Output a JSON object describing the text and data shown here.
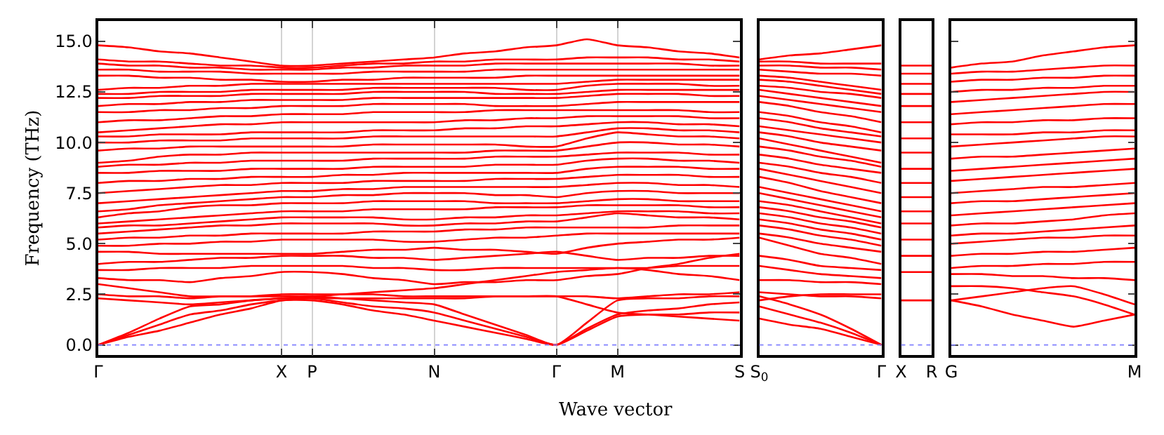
{
  "chart_data": [
    {
      "type": "line",
      "xlabel": "Wave vector",
      "ylabel": "Frequency (THz)",
      "categories": [
        "Γ",
        null,
        null,
        null,
        null,
        null,
        "X",
        "P",
        null,
        null,
        null,
        "N",
        null,
        null,
        null,
        "Γ",
        null,
        "M",
        null,
        null,
        null,
        "S"
      ],
      "ylim": [
        -0.5,
        16
      ],
      "yticks": [
        {
          "value": 0,
          "label": "0.0"
        },
        {
          "value": 2.5,
          "label": "2.5"
        },
        {
          "value": 5,
          "label": "5.0"
        },
        {
          "value": 7.5,
          "label": "7.5"
        },
        {
          "value": 10,
          "label": "10.0"
        },
        {
          "value": 12.5,
          "label": "12.5"
        },
        {
          "value": 15,
          "label": "15.0"
        }
      ],
      "grid": "x",
      "marker": "none",
      "line_style": "solid",
      "ref_lines": [
        {
          "axis": "y",
          "value": 0,
          "color": "#8080ff",
          "line_style": "dotted"
        }
      ],
      "series": [
        {
          "color": "#ff0000",
          "values": [
            0,
            0.4,
            0.7,
            1.1,
            1.5,
            1.8,
            2.2,
            2.2,
            2.0,
            1.7,
            1.5,
            1.2,
            0.9,
            0.6,
            0.3,
            0,
            0.7,
            1.4,
            1.5,
            1.5,
            1.6,
            1.6
          ]
        },
        {
          "color": "#ff0000",
          "values": [
            0,
            0.5,
            1.0,
            1.5,
            1.7,
            2.0,
            2.2,
            2.3,
            2.1,
            1.9,
            1.8,
            1.6,
            1.2,
            0.8,
            0.4,
            0,
            0.8,
            1.5,
            1.7,
            1.8,
            2.0,
            2.1
          ]
        },
        {
          "color": "#ff0000",
          "values": [
            0,
            0.6,
            1.3,
            1.9,
            2.0,
            2.2,
            2.3,
            2.4,
            2.3,
            2.2,
            2.1,
            2.0,
            1.5,
            1.0,
            0.5,
            0,
            1.1,
            2.2,
            2.3,
            2.3,
            2.4,
            2.4
          ]
        },
        {
          "color": "#ff0000",
          "values": [
            2.5,
            2.4,
            2.4,
            2.3,
            2.4,
            2.4,
            2.5,
            2.5,
            2.5,
            2.5,
            2.4,
            2.4,
            2.4,
            2.4,
            2.4,
            2.4,
            2.0,
            1.6,
            1.5,
            1.4,
            1.3,
            1.2
          ]
        },
        {
          "color": "#ff0000",
          "values": [
            2.3,
            2.2,
            2.1,
            2.0,
            2.1,
            2.2,
            2.3,
            2.3,
            2.3,
            2.3,
            2.3,
            2.3,
            2.3,
            2.4,
            2.4,
            2.4,
            2.4,
            2.3,
            2.4,
            2.5,
            2.5,
            2.6
          ]
        },
        {
          "color": "#ff0000",
          "values": [
            3.0,
            2.8,
            2.6,
            2.4,
            2.4,
            2.4,
            2.4,
            2.4,
            2.5,
            2.6,
            2.7,
            2.8,
            3.0,
            3.2,
            3.4,
            3.6,
            3.7,
            3.8,
            3.7,
            3.5,
            3.4,
            3.2
          ]
        },
        {
          "color": "#ff0000",
          "values": [
            3.3,
            3.2,
            3.2,
            3.1,
            3.3,
            3.4,
            3.6,
            3.6,
            3.5,
            3.3,
            3.2,
            3.0,
            3.1,
            3.1,
            3.2,
            3.2,
            3.4,
            3.5,
            3.8,
            4.0,
            4.3,
            4.5
          ]
        },
        {
          "color": "#ff0000",
          "values": [
            3.7,
            3.7,
            3.8,
            3.8,
            3.8,
            3.9,
            3.9,
            3.9,
            3.9,
            3.8,
            3.8,
            3.7,
            3.7,
            3.8,
            3.8,
            3.8,
            3.8,
            3.8,
            3.8,
            3.9,
            3.9,
            3.9
          ]
        },
        {
          "color": "#ff0000",
          "values": [
            4.0,
            4.1,
            4.1,
            4.2,
            4.3,
            4.3,
            4.4,
            4.4,
            4.4,
            4.3,
            4.3,
            4.2,
            4.3,
            4.4,
            4.5,
            4.6,
            4.4,
            4.2,
            4.3,
            4.3,
            4.4,
            4.4
          ]
        },
        {
          "color": "#ff0000",
          "values": [
            4.6,
            4.6,
            4.5,
            4.5,
            4.5,
            4.5,
            4.5,
            4.5,
            4.6,
            4.7,
            4.7,
            4.8,
            4.7,
            4.7,
            4.6,
            4.5,
            4.8,
            5.0,
            5.1,
            5.2,
            5.2,
            5.3
          ]
        },
        {
          "color": "#ff0000",
          "values": [
            4.9,
            4.9,
            5.0,
            5.0,
            5.1,
            5.1,
            5.2,
            5.2,
            5.2,
            5.2,
            5.1,
            5.1,
            5.2,
            5.3,
            5.3,
            5.4,
            5.5,
            5.5,
            5.5,
            5.5,
            5.5,
            5.5
          ]
        },
        {
          "color": "#ff0000",
          "values": [
            5.2,
            5.3,
            5.3,
            5.4,
            5.4,
            5.5,
            5.5,
            5.5,
            5.5,
            5.6,
            5.6,
            5.6,
            5.7,
            5.7,
            5.8,
            5.8,
            5.8,
            5.8,
            5.8,
            5.9,
            5.9,
            5.9
          ]
        },
        {
          "color": "#ff0000",
          "values": [
            5.5,
            5.6,
            5.7,
            5.8,
            5.9,
            5.9,
            6.0,
            6.0,
            6.0,
            6.0,
            5.9,
            5.9,
            6.0,
            6.0,
            6.1,
            6.1,
            6.3,
            6.5,
            6.4,
            6.3,
            6.3,
            6.2
          ]
        },
        {
          "color": "#ff0000",
          "values": [
            5.8,
            5.9,
            5.9,
            6.0,
            6.1,
            6.2,
            6.3,
            6.3,
            6.3,
            6.3,
            6.2,
            6.2,
            6.3,
            6.3,
            6.4,
            6.4,
            6.5,
            6.6,
            6.6,
            6.6,
            6.5,
            6.5
          ]
        },
        {
          "color": "#ff0000",
          "values": [
            6.0,
            6.1,
            6.2,
            6.3,
            6.4,
            6.5,
            6.6,
            6.6,
            6.6,
            6.7,
            6.7,
            6.7,
            6.7,
            6.8,
            6.8,
            6.8,
            6.9,
            6.9,
            6.9,
            6.9,
            6.8,
            6.8
          ]
        },
        {
          "color": "#ff0000",
          "values": [
            6.3,
            6.5,
            6.6,
            6.8,
            6.9,
            6.9,
            7.0,
            7.0,
            7.0,
            7.1,
            7.1,
            7.1,
            7.1,
            7.0,
            7.0,
            7.0,
            7.1,
            7.2,
            7.2,
            7.1,
            7.1,
            7.1
          ]
        },
        {
          "color": "#ff0000",
          "values": [
            6.6,
            6.7,
            6.9,
            7.0,
            7.1,
            7.2,
            7.3,
            7.3,
            7.4,
            7.4,
            7.5,
            7.5,
            7.5,
            7.4,
            7.4,
            7.3,
            7.5,
            7.6,
            7.6,
            7.5,
            7.5,
            7.5
          ]
        },
        {
          "color": "#ff0000",
          "values": [
            7.0,
            7.1,
            7.2,
            7.3,
            7.4,
            7.5,
            7.6,
            7.6,
            7.7,
            7.7,
            7.8,
            7.8,
            7.8,
            7.8,
            7.8,
            7.8,
            7.9,
            8.0,
            8.0,
            7.9,
            7.9,
            7.8
          ]
        },
        {
          "color": "#ff0000",
          "values": [
            7.5,
            7.6,
            7.7,
            7.8,
            7.9,
            7.9,
            8.0,
            8.0,
            8.0,
            8.1,
            8.1,
            8.1,
            8.1,
            8.2,
            8.2,
            8.2,
            8.3,
            8.4,
            8.4,
            8.4,
            8.3,
            8.3
          ]
        },
        {
          "color": "#ff0000",
          "values": [
            8.0,
            8.1,
            8.1,
            8.2,
            8.2,
            8.3,
            8.3,
            8.3,
            8.4,
            8.4,
            8.5,
            8.5,
            8.5,
            8.5,
            8.5,
            8.5,
            8.7,
            8.8,
            8.8,
            8.8,
            8.7,
            8.7
          ]
        },
        {
          "color": "#ff0000",
          "values": [
            8.5,
            8.5,
            8.6,
            8.6,
            8.6,
            8.7,
            8.7,
            8.7,
            8.7,
            8.8,
            8.8,
            8.8,
            8.8,
            8.9,
            8.9,
            8.9,
            9.1,
            9.2,
            9.2,
            9.1,
            9.1,
            9.0
          ]
        },
        {
          "color": "#ff0000",
          "values": [
            8.8,
            8.9,
            8.9,
            9.0,
            9.0,
            9.1,
            9.1,
            9.1,
            9.1,
            9.2,
            9.2,
            9.2,
            9.2,
            9.3,
            9.3,
            9.3,
            9.4,
            9.5,
            9.5,
            9.5,
            9.4,
            9.4
          ]
        },
        {
          "color": "#ff0000",
          "values": [
            9.0,
            9.1,
            9.3,
            9.4,
            9.4,
            9.5,
            9.5,
            9.5,
            9.5,
            9.5,
            9.5,
            9.5,
            9.5,
            9.6,
            9.6,
            9.6,
            9.8,
            10.0,
            10.0,
            9.9,
            9.9,
            9.8
          ]
        },
        {
          "color": "#ff0000",
          "values": [
            9.6,
            9.7,
            9.7,
            9.8,
            9.8,
            9.8,
            9.8,
            9.8,
            9.8,
            9.9,
            9.9,
            9.9,
            9.9,
            9.9,
            9.8,
            9.8,
            10.2,
            10.5,
            10.4,
            10.3,
            10.3,
            10.2
          ]
        },
        {
          "color": "#ff0000",
          "values": [
            10.0,
            10.0,
            10.1,
            10.1,
            10.1,
            10.2,
            10.2,
            10.2,
            10.2,
            10.3,
            10.3,
            10.3,
            10.3,
            10.3,
            10.3,
            10.3,
            10.5,
            10.7,
            10.7,
            10.6,
            10.6,
            10.5
          ]
        },
        {
          "color": "#ff0000",
          "values": [
            10.3,
            10.3,
            10.4,
            10.4,
            10.4,
            10.5,
            10.5,
            10.5,
            10.5,
            10.6,
            10.6,
            10.6,
            10.7,
            10.7,
            10.8,
            10.8,
            10.9,
            11.0,
            11.0,
            10.9,
            10.9,
            10.8
          ]
        },
        {
          "color": "#ff0000",
          "values": [
            10.5,
            10.6,
            10.7,
            10.8,
            10.9,
            10.9,
            11.0,
            11.0,
            11.0,
            11.0,
            11.0,
            11.0,
            11.1,
            11.1,
            11.2,
            11.2,
            11.3,
            11.3,
            11.3,
            11.3,
            11.2,
            11.2
          ]
        },
        {
          "color": "#ff0000",
          "values": [
            11.0,
            11.1,
            11.1,
            11.2,
            11.3,
            11.3,
            11.4,
            11.4,
            11.4,
            11.5,
            11.5,
            11.5,
            11.5,
            11.6,
            11.6,
            11.6,
            11.6,
            11.6,
            11.6,
            11.6,
            11.5,
            11.5
          ]
        },
        {
          "color": "#ff0000",
          "values": [
            11.5,
            11.5,
            11.6,
            11.6,
            11.7,
            11.7,
            11.8,
            11.8,
            11.8,
            11.9,
            11.9,
            11.9,
            11.9,
            11.8,
            11.8,
            11.8,
            11.9,
            12.0,
            12.0,
            12.0,
            12.0,
            12.0
          ]
        },
        {
          "color": "#ff0000",
          "values": [
            11.8,
            11.9,
            11.9,
            12.0,
            12.0,
            12.1,
            12.1,
            12.1,
            12.1,
            12.2,
            12.2,
            12.2,
            12.2,
            12.2,
            12.2,
            12.2,
            12.3,
            12.4,
            12.4,
            12.4,
            12.3,
            12.3
          ]
        },
        {
          "color": "#ff0000",
          "values": [
            12.2,
            12.2,
            12.3,
            12.3,
            12.3,
            12.4,
            12.4,
            12.4,
            12.4,
            12.5,
            12.5,
            12.5,
            12.5,
            12.4,
            12.4,
            12.4,
            12.5,
            12.6,
            12.6,
            12.6,
            12.6,
            12.6
          ]
        },
        {
          "color": "#ff0000",
          "values": [
            12.4,
            12.4,
            12.5,
            12.5,
            12.5,
            12.6,
            12.6,
            12.6,
            12.6,
            12.7,
            12.7,
            12.7,
            12.7,
            12.7,
            12.6,
            12.6,
            12.8,
            12.9,
            12.9,
            12.9,
            12.8,
            12.8
          ]
        },
        {
          "color": "#ff0000",
          "values": [
            12.6,
            12.7,
            12.7,
            12.8,
            12.8,
            12.9,
            12.9,
            12.9,
            12.9,
            12.9,
            12.9,
            12.9,
            12.9,
            12.9,
            12.9,
            12.9,
            13.0,
            13.1,
            13.1,
            13.1,
            13.1,
            13.1
          ]
        },
        {
          "color": "#ff0000",
          "values": [
            13.3,
            13.3,
            13.2,
            13.2,
            13.1,
            13.1,
            13.0,
            13.0,
            13.1,
            13.1,
            13.2,
            13.2,
            13.2,
            13.2,
            13.3,
            13.3,
            13.3,
            13.3,
            13.3,
            13.3,
            13.3,
            13.3
          ]
        },
        {
          "color": "#ff0000",
          "values": [
            13.6,
            13.6,
            13.5,
            13.5,
            13.5,
            13.4,
            13.4,
            13.4,
            13.4,
            13.5,
            13.5,
            13.5,
            13.5,
            13.6,
            13.6,
            13.6,
            13.6,
            13.6,
            13.6,
            13.6,
            13.6,
            13.6
          ]
        },
        {
          "color": "#ff0000",
          "values": [
            13.9,
            13.8,
            13.8,
            13.7,
            13.7,
            13.6,
            13.6,
            13.6,
            13.7,
            13.7,
            13.8,
            13.8,
            13.8,
            13.9,
            13.9,
            13.9,
            13.9,
            13.9,
            13.9,
            13.9,
            13.8,
            13.8
          ]
        },
        {
          "color": "#ff0000",
          "values": [
            14.1,
            14.0,
            14.0,
            13.9,
            13.8,
            13.8,
            13.7,
            13.7,
            13.8,
            13.9,
            13.9,
            14.0,
            14.0,
            14.1,
            14.1,
            14.1,
            14.2,
            14.2,
            14.2,
            14.1,
            14.1,
            14.0
          ]
        },
        {
          "color": "#ff0000",
          "values": [
            14.8,
            14.7,
            14.5,
            14.4,
            14.2,
            14.0,
            13.8,
            13.8,
            13.9,
            14.0,
            14.1,
            14.2,
            14.4,
            14.5,
            14.7,
            14.8,
            15.1,
            14.8,
            14.7,
            14.5,
            14.4,
            14.2
          ]
        }
      ]
    },
    {
      "type": "line",
      "categories": [
        "S$_{0}$",
        null,
        null,
        null,
        "Γ"
      ],
      "ylim": [
        -0.5,
        16
      ],
      "tick_labels": "x",
      "marker": "none",
      "line_style": "solid",
      "ref_lines": [
        {
          "axis": "y",
          "value": 0,
          "color": "#8080ff",
          "line_style": "dotted"
        }
      ],
      "series": [
        {
          "color": "#ff0000",
          "values": [
            1.3,
            1.0,
            0.8,
            0.4,
            0
          ]
        },
        {
          "color": "#ff0000",
          "values": [
            1.9,
            1.5,
            1.1,
            0.6,
            0
          ]
        },
        {
          "color": "#ff0000",
          "values": [
            2.4,
            2.0,
            1.5,
            0.8,
            0
          ]
        },
        {
          "color": "#ff0000",
          "values": [
            2.2,
            2.4,
            2.5,
            2.5,
            2.5
          ]
        },
        {
          "color": "#ff0000",
          "values": [
            2.6,
            2.5,
            2.4,
            2.4,
            2.3
          ]
        },
        {
          "color": "#ff0000",
          "values": [
            3.2,
            3.2,
            3.1,
            3.1,
            3.0
          ]
        },
        {
          "color": "#ff0000",
          "values": [
            3.9,
            3.7,
            3.5,
            3.4,
            3.3
          ]
        },
        {
          "color": "#ff0000",
          "values": [
            4.4,
            4.2,
            3.9,
            3.8,
            3.7
          ]
        },
        {
          "color": "#ff0000",
          "values": [
            5.3,
            4.9,
            4.5,
            4.3,
            4.0
          ]
        },
        {
          "color": "#ff0000",
          "values": [
            5.5,
            5.3,
            5.0,
            4.8,
            4.6
          ]
        },
        {
          "color": "#ff0000",
          "values": [
            5.9,
            5.7,
            5.4,
            5.2,
            4.9
          ]
        },
        {
          "color": "#ff0000",
          "values": [
            6.2,
            6.0,
            5.7,
            5.5,
            5.2
          ]
        },
        {
          "color": "#ff0000",
          "values": [
            6.5,
            6.3,
            6.0,
            5.8,
            5.5
          ]
        },
        {
          "color": "#ff0000",
          "values": [
            6.8,
            6.6,
            6.3,
            6.1,
            5.8
          ]
        },
        {
          "color": "#ff0000",
          "values": [
            7.1,
            6.9,
            6.6,
            6.3,
            6.0
          ]
        },
        {
          "color": "#ff0000",
          "values": [
            7.5,
            7.2,
            6.9,
            6.6,
            6.3
          ]
        },
        {
          "color": "#ff0000",
          "values": [
            7.8,
            7.5,
            7.2,
            6.9,
            6.6
          ]
        },
        {
          "color": "#ff0000",
          "values": [
            8.3,
            8.0,
            7.6,
            7.3,
            7.0
          ]
        },
        {
          "color": "#ff0000",
          "values": [
            8.7,
            8.4,
            8.1,
            7.8,
            7.5
          ]
        },
        {
          "color": "#ff0000",
          "values": [
            9.0,
            8.8,
            8.5,
            8.3,
            8.0
          ]
        },
        {
          "color": "#ff0000",
          "values": [
            9.4,
            9.2,
            8.9,
            8.7,
            8.5
          ]
        },
        {
          "color": "#ff0000",
          "values": [
            9.8,
            9.6,
            9.3,
            9.1,
            8.8
          ]
        },
        {
          "color": "#ff0000",
          "values": [
            10.2,
            9.9,
            9.6,
            9.3,
            9.0
          ]
        },
        {
          "color": "#ff0000",
          "values": [
            10.5,
            10.3,
            10.0,
            9.8,
            9.6
          ]
        },
        {
          "color": "#ff0000",
          "values": [
            10.8,
            10.6,
            10.4,
            10.2,
            10.0
          ]
        },
        {
          "color": "#ff0000",
          "values": [
            11.2,
            11.0,
            10.7,
            10.5,
            10.3
          ]
        },
        {
          "color": "#ff0000",
          "values": [
            11.5,
            11.3,
            11.0,
            10.8,
            10.5
          ]
        },
        {
          "color": "#ff0000",
          "values": [
            12.0,
            11.8,
            11.5,
            11.3,
            11.0
          ]
        },
        {
          "color": "#ff0000",
          "values": [
            12.3,
            12.1,
            11.9,
            11.7,
            11.5
          ]
        },
        {
          "color": "#ff0000",
          "values": [
            12.6,
            12.4,
            12.2,
            12.0,
            11.8
          ]
        },
        {
          "color": "#ff0000",
          "values": [
            12.8,
            12.7,
            12.5,
            12.4,
            12.2
          ]
        },
        {
          "color": "#ff0000",
          "values": [
            13.1,
            13.0,
            12.8,
            12.6,
            12.4
          ]
        },
        {
          "color": "#ff0000",
          "values": [
            13.3,
            13.2,
            13.0,
            12.8,
            12.6
          ]
        },
        {
          "color": "#ff0000",
          "values": [
            13.6,
            13.5,
            13.4,
            13.4,
            13.3
          ]
        },
        {
          "color": "#ff0000",
          "values": [
            13.8,
            13.8,
            13.7,
            13.7,
            13.6
          ]
        },
        {
          "color": "#ff0000",
          "values": [
            14.0,
            14.0,
            13.9,
            13.9,
            13.9
          ]
        },
        {
          "color": "#ff0000",
          "values": [
            14.1,
            14.3,
            14.4,
            14.6,
            14.8
          ]
        }
      ]
    },
    {
      "type": "line",
      "categories": [
        "X",
        "R"
      ],
      "ylim": [
        -0.5,
        16
      ],
      "tick_labels": "x",
      "marker": "none",
      "line_style": "solid",
      "ref_lines": [
        {
          "axis": "y",
          "value": 0,
          "color": "#8080ff",
          "line_style": "dotted"
        }
      ],
      "series": [
        {
          "color": "#ff0000",
          "values": [
            2.2,
            2.2
          ]
        },
        {
          "color": "#ff0000",
          "values": [
            3.6,
            3.6
          ]
        },
        {
          "color": "#ff0000",
          "values": [
            4.4,
            4.4
          ]
        },
        {
          "color": "#ff0000",
          "values": [
            5.2,
            5.2
          ]
        },
        {
          "color": "#ff0000",
          "values": [
            6.0,
            6.0
          ]
        },
        {
          "color": "#ff0000",
          "values": [
            6.6,
            6.6
          ]
        },
        {
          "color": "#ff0000",
          "values": [
            7.3,
            7.3
          ]
        },
        {
          "color": "#ff0000",
          "values": [
            8.0,
            8.0
          ]
        },
        {
          "color": "#ff0000",
          "values": [
            8.7,
            8.7
          ]
        },
        {
          "color": "#ff0000",
          "values": [
            9.5,
            9.5
          ]
        },
        {
          "color": "#ff0000",
          "values": [
            10.2,
            10.2
          ]
        },
        {
          "color": "#ff0000",
          "values": [
            11.0,
            11.0
          ]
        },
        {
          "color": "#ff0000",
          "values": [
            11.8,
            11.8
          ]
        },
        {
          "color": "#ff0000",
          "values": [
            12.4,
            12.4
          ]
        },
        {
          "color": "#ff0000",
          "values": [
            12.9,
            12.9
          ]
        },
        {
          "color": "#ff0000",
          "values": [
            13.4,
            13.4
          ]
        },
        {
          "color": "#ff0000",
          "values": [
            13.8,
            13.8
          ]
        }
      ]
    },
    {
      "type": "line",
      "categories": [
        "G",
        null,
        null,
        null,
        null,
        null,
        "M"
      ],
      "ylim": [
        -0.5,
        16
      ],
      "tick_labels": "x",
      "yticks": [
        {
          "value": 0,
          "label": null
        },
        {
          "value": 2.5,
          "label": null
        },
        {
          "value": 5,
          "label": null
        },
        {
          "value": 7.5,
          "label": null
        },
        {
          "value": 10,
          "label": null
        },
        {
          "value": 12.5,
          "label": null
        },
        {
          "value": 15,
          "label": null
        }
      ],
      "marker": "none",
      "line_style": "solid",
      "ref_lines": [
        {
          "axis": "y",
          "value": 0,
          "color": "#8080ff",
          "line_style": "dotted"
        }
      ],
      "series": [
        {
          "color": "#ff0000",
          "values": [
            2.2,
            1.9,
            1.5,
            1.2,
            0.9,
            1.2,
            1.5
          ]
        },
        {
          "color": "#ff0000",
          "values": [
            2.2,
            2.4,
            2.6,
            2.8,
            2.9,
            2.5,
            2.0
          ]
        },
        {
          "color": "#ff0000",
          "values": [
            2.9,
            2.9,
            2.8,
            2.6,
            2.4,
            2.0,
            1.5
          ]
        },
        {
          "color": "#ff0000",
          "values": [
            3.5,
            3.5,
            3.4,
            3.4,
            3.3,
            3.3,
            3.2
          ]
        },
        {
          "color": "#ff0000",
          "values": [
            3.8,
            3.9,
            3.9,
            4.0,
            4.0,
            4.1,
            4.1
          ]
        },
        {
          "color": "#ff0000",
          "values": [
            4.4,
            4.5,
            4.5,
            4.6,
            4.6,
            4.7,
            4.8
          ]
        },
        {
          "color": "#ff0000",
          "values": [
            5.0,
            5.1,
            5.2,
            5.3,
            5.3,
            5.4,
            5.4
          ]
        },
        {
          "color": "#ff0000",
          "values": [
            5.4,
            5.5,
            5.5,
            5.6,
            5.7,
            5.8,
            5.9
          ]
        },
        {
          "color": "#ff0000",
          "values": [
            5.9,
            6.0,
            6.0,
            6.1,
            6.2,
            6.4,
            6.5
          ]
        },
        {
          "color": "#ff0000",
          "values": [
            6.4,
            6.5,
            6.6,
            6.7,
            6.8,
            6.9,
            7.0
          ]
        },
        {
          "color": "#ff0000",
          "values": [
            7.0,
            7.1,
            7.1,
            7.2,
            7.3,
            7.4,
            7.5
          ]
        },
        {
          "color": "#ff0000",
          "values": [
            7.5,
            7.6,
            7.7,
            7.8,
            7.8,
            7.9,
            8.0
          ]
        },
        {
          "color": "#ff0000",
          "values": [
            8.1,
            8.2,
            8.3,
            8.4,
            8.5,
            8.6,
            8.7
          ]
        },
        {
          "color": "#ff0000",
          "values": [
            8.6,
            8.7,
            8.8,
            8.9,
            9.0,
            9.1,
            9.2
          ]
        },
        {
          "color": "#ff0000",
          "values": [
            9.2,
            9.3,
            9.3,
            9.4,
            9.5,
            9.6,
            9.7
          ]
        },
        {
          "color": "#ff0000",
          "values": [
            9.8,
            9.9,
            10.0,
            10.1,
            10.2,
            10.3,
            10.3
          ]
        },
        {
          "color": "#ff0000",
          "values": [
            10.4,
            10.4,
            10.4,
            10.5,
            10.5,
            10.6,
            10.6
          ]
        },
        {
          "color": "#ff0000",
          "values": [
            10.9,
            11.0,
            11.0,
            11.1,
            11.1,
            11.2,
            11.2
          ]
        },
        {
          "color": "#ff0000",
          "values": [
            11.4,
            11.5,
            11.6,
            11.7,
            11.8,
            11.9,
            11.9
          ]
        },
        {
          "color": "#ff0000",
          "values": [
            12.0,
            12.1,
            12.2,
            12.3,
            12.4,
            12.5,
            12.5
          ]
        },
        {
          "color": "#ff0000",
          "values": [
            12.5,
            12.6,
            12.6,
            12.7,
            12.7,
            12.8,
            12.8
          ]
        },
        {
          "color": "#ff0000",
          "values": [
            13.0,
            13.1,
            13.1,
            13.2,
            13.2,
            13.3,
            13.3
          ]
        },
        {
          "color": "#ff0000",
          "values": [
            13.4,
            13.5,
            13.5,
            13.6,
            13.7,
            13.8,
            13.8
          ]
        },
        {
          "color": "#ff0000",
          "values": [
            13.7,
            13.9,
            14.0,
            14.3,
            14.5,
            14.7,
            14.8
          ]
        }
      ]
    }
  ]
}
